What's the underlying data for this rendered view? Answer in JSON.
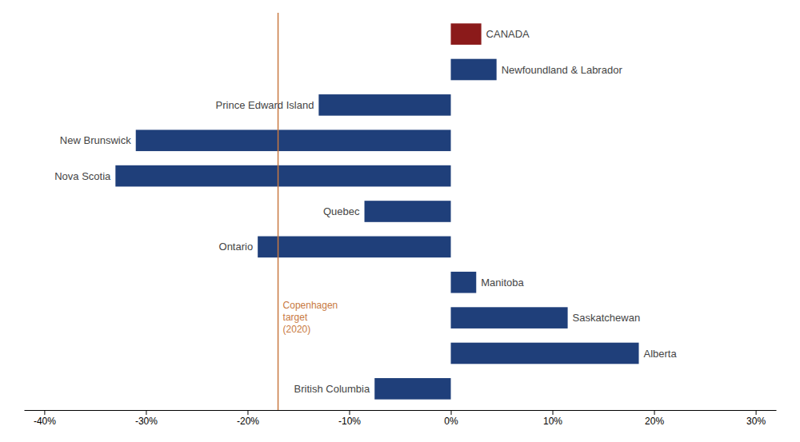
{
  "chart_data": {
    "type": "bar",
    "orientation": "horizontal",
    "categories": [
      "CANADA",
      "Newfoundland & Labrador",
      "Prince Edward Island",
      "New Brunswick",
      "Nova Scotia",
      "Quebec",
      "Ontario",
      "Manitoba",
      "Saskatchewan",
      "Alberta",
      "British Columbia"
    ],
    "values": [
      3.0,
      4.5,
      -13.0,
      -31.0,
      -33.0,
      -8.5,
      -19.0,
      2.5,
      11.5,
      18.5,
      -7.5
    ],
    "colors": [
      "#8b1a1a",
      "#1f3f7a",
      "#1f3f7a",
      "#1f3f7a",
      "#1f3f7a",
      "#1f3f7a",
      "#1f3f7a",
      "#1f3f7a",
      "#1f3f7a",
      "#1f3f7a",
      "#1f3f7a"
    ],
    "xlim": [
      -42,
      32
    ],
    "xticks": [
      {
        "value": -40,
        "label": "-40%"
      },
      {
        "value": -30,
        "label": "-30%"
      },
      {
        "value": -20,
        "label": "-20%"
      },
      {
        "value": -10,
        "label": "-10%"
      },
      {
        "value": 0,
        "label": "0%"
      },
      {
        "value": 10,
        "label": "10%"
      },
      {
        "value": 20,
        "label": "20%"
      },
      {
        "value": 30,
        "label": "30%"
      }
    ],
    "annotations": [
      {
        "text": "Copenhagen\ntarget\n(2020)",
        "x": -17,
        "color": "#c87941"
      }
    ],
    "grid": false,
    "tick_labels": "x"
  }
}
